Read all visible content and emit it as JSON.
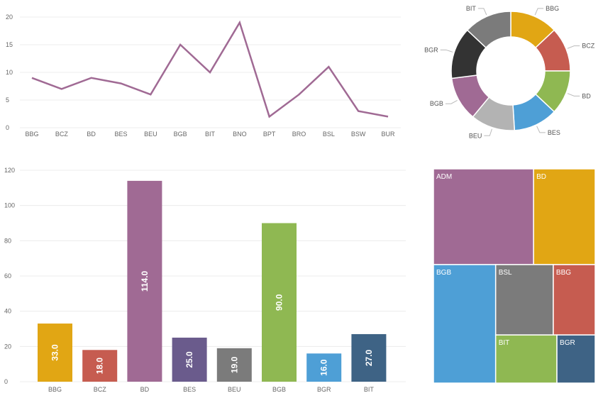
{
  "palette": {
    "BBG": "#e1a614",
    "BCZ": "#c65c50",
    "BD": "#a06a94",
    "BD_donut": "#8fb852",
    "BES": "#6a5b8c",
    "BEU": "#7b7b7b",
    "BGB": "#8fb852",
    "BGR": "#4e9fd6",
    "BIT": "#3e6385",
    "line": "#a06a94"
  },
  "chart_data": [
    {
      "type": "line",
      "categories": [
        "BBG",
        "BCZ",
        "BD",
        "BES",
        "BEU",
        "BGB",
        "BIT",
        "BNO",
        "BPT",
        "BRO",
        "BSL",
        "BSW",
        "BUR"
      ],
      "series": [
        {
          "values": [
            9,
            7,
            9,
            8,
            6,
            15,
            10,
            19,
            2,
            6,
            11,
            3,
            2
          ]
        }
      ],
      "ylim": [
        0,
        20
      ],
      "yticks": [
        0,
        5,
        10,
        15,
        20
      ],
      "grid": true
    },
    {
      "type": "pie",
      "donut": true,
      "labels": [
        "BBG",
        "BCZ",
        "BD",
        "BES",
        "BEU",
        "BGB",
        "BGR",
        "BIT"
      ],
      "values": [
        13,
        12,
        12,
        12,
        12,
        12,
        14,
        13
      ],
      "colors": [
        "#e1a614",
        "#c65c50",
        "#8fb852",
        "#4e9fd6",
        "#b3b3b3",
        "#a06a94",
        "#333333",
        "#7b7b7b"
      ]
    },
    {
      "type": "bar",
      "categories": [
        "BBG",
        "BCZ",
        "BD",
        "BES",
        "BEU",
        "BGB",
        "BGR",
        "BIT"
      ],
      "values": [
        33.0,
        18.0,
        114.0,
        25.0,
        19.0,
        90.0,
        16.0,
        27.0
      ],
      "data_labels": [
        "33.0",
        "18.0",
        "114.0",
        "25.0",
        "19.0",
        "90.0",
        "16.0",
        "27.0"
      ],
      "colors": [
        "#e1a614",
        "#c65c50",
        "#a06a94",
        "#6a5b8c",
        "#7b7b7b",
        "#8fb852",
        "#4e9fd6",
        "#3e6385"
      ],
      "ylim": [
        0,
        120
      ],
      "yticks": [
        0,
        20,
        40,
        60,
        80,
        100,
        120
      ],
      "grid": true
    },
    {
      "type": "treemap",
      "labels": [
        "ADM",
        "BD",
        "BGB",
        "BSL",
        "BBG",
        "BIT",
        "BGR"
      ],
      "values": [
        26,
        16,
        20,
        11,
        8,
        8,
        5
      ],
      "colors": [
        "#a06a94",
        "#e1a614",
        "#4e9fd6",
        "#7b7b7b",
        "#c65c50",
        "#8fb852",
        "#3e6385"
      ]
    }
  ]
}
